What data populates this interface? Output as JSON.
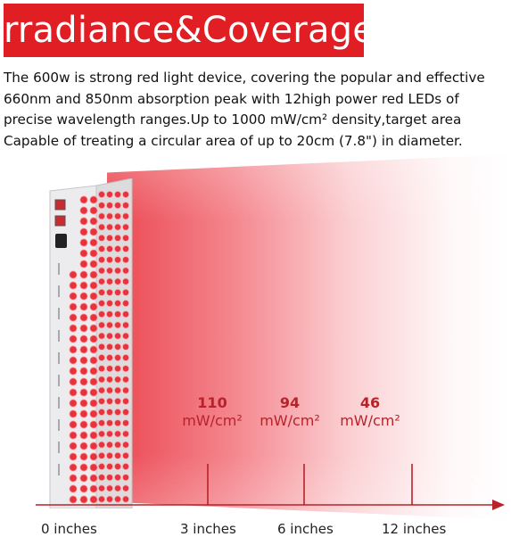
{
  "title": "Irradiance&Coverage",
  "description": "The 600w is strong red light device, covering the popular and effective 660nm and 850nm absorption peak with 12high power red LEDs of precise wavelength ranges.Up to 1000 mW/cm² density,target area Capable of treating a circular area of up to 20cm (7.8\") in diameter.",
  "colors": {
    "title_background": "#e01e24",
    "reading_text": "#b8222a",
    "axis_line": "#b8222a",
    "led": "#e8323c"
  },
  "readings": [
    {
      "value": "110",
      "unit": "mW/cm²"
    },
    {
      "value": "94",
      "unit": "mW/cm²"
    },
    {
      "value": "46",
      "unit": "mW/cm²"
    }
  ],
  "distance_labels": [
    "0 inches",
    "3 inches",
    "6 inches",
    "12 inches"
  ]
}
